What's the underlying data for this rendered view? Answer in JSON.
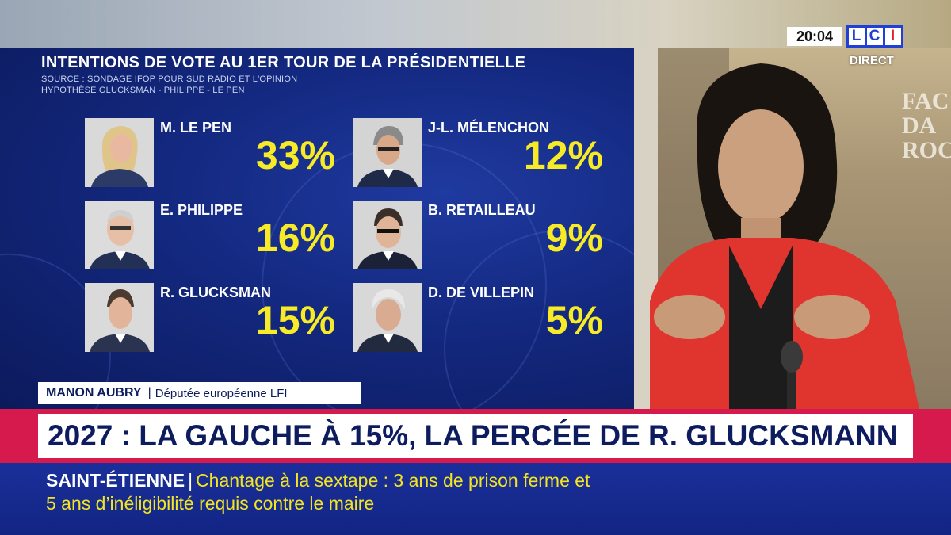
{
  "poll": {
    "title": "INTENTIONS DE VOTE AU 1ER TOUR DE LA PRÉSIDENTIELLE",
    "source": "SOURCE : SONDAGE IFOP POUR SUD RADIO ET L'OPINION",
    "hypothesis": "HYPOTHÈSE GLUCKSMAN - PHILIPPE - LE PEN",
    "candidates": [
      {
        "name": "M. LE PEN",
        "pct": "33%"
      },
      {
        "name": "J-L. MÉLENCHON",
        "pct": "12%"
      },
      {
        "name": "E. PHILIPPE",
        "pct": "16%"
      },
      {
        "name": "B. RETAILLEAU",
        "pct": "9%"
      },
      {
        "name": "R. GLUCKSMAN",
        "pct": "15%"
      },
      {
        "name": "D. DE VILLEPIN",
        "pct": "5%"
      }
    ]
  },
  "channel": {
    "clock": "20:04",
    "logo_letters": [
      "L",
      "C",
      "I"
    ],
    "live_label": "DIRECT",
    "logo_color": "#1f3fd6"
  },
  "background_text": [
    "FAC",
    "DA",
    "ROC"
  ],
  "speaker": {
    "name": "MANON AUBRY",
    "separator": "|",
    "role": "Députée européenne LFI"
  },
  "headline": {
    "text": "2027 : LA GAUCHE À 15%, LA PERCÉE DE R. GLUCKSMANN",
    "accent_color": "#d61a4d"
  },
  "ticker": {
    "place": "SAINT-ÉTIENNE",
    "separator": "|",
    "line1": "Chantage à la sextape : 3 ans de prison ferme et",
    "line2": "5 ans d’inéligibilité requis contre le maire"
  }
}
